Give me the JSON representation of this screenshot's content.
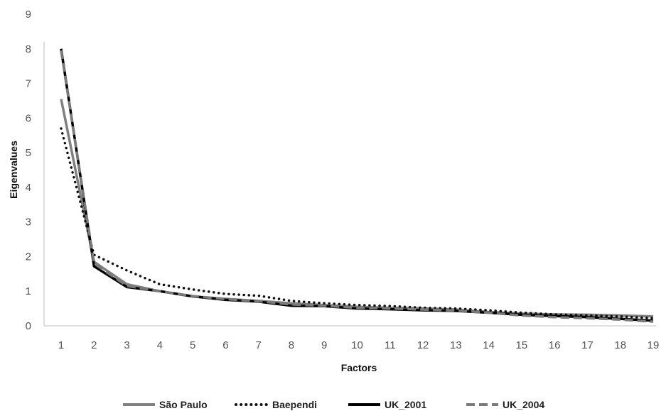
{
  "chart_data": {
    "type": "line",
    "title": "",
    "xlabel": "Factors",
    "ylabel": "Eigenvalues",
    "x": [
      1,
      2,
      3,
      4,
      5,
      6,
      7,
      8,
      9,
      10,
      11,
      12,
      13,
      14,
      15,
      16,
      17,
      18,
      19
    ],
    "ylim": [
      0,
      9
    ],
    "yticks": [
      0,
      1,
      2,
      3,
      4,
      5,
      6,
      7,
      8,
      9
    ],
    "grid": false,
    "legend_position": "bottom",
    "series": [
      {
        "name": "São Paulo",
        "color": "#808080",
        "style": "solid",
        "values": [
          6.55,
          1.85,
          1.2,
          1.0,
          0.85,
          0.78,
          0.72,
          0.65,
          0.6,
          0.55,
          0.52,
          0.5,
          0.47,
          0.4,
          0.35,
          0.33,
          0.32,
          0.3,
          0.27
        ]
      },
      {
        "name": "Baependi",
        "color": "#111111",
        "style": "dotted",
        "values": [
          5.7,
          2.05,
          1.6,
          1.2,
          1.05,
          0.92,
          0.87,
          0.72,
          0.65,
          0.6,
          0.57,
          0.52,
          0.5,
          0.45,
          0.38,
          0.33,
          0.3,
          0.27,
          0.22
        ]
      },
      {
        "name": "UK_2001",
        "color": "#000000",
        "style": "solid",
        "values": [
          8.0,
          1.72,
          1.12,
          1.0,
          0.85,
          0.75,
          0.7,
          0.58,
          0.57,
          0.5,
          0.48,
          0.45,
          0.43,
          0.38,
          0.32,
          0.28,
          0.25,
          0.2,
          0.15
        ]
      },
      {
        "name": "UK_2004",
        "color": "#7a7a7a",
        "style": "dashed",
        "values": [
          7.95,
          1.8,
          1.15,
          1.0,
          0.86,
          0.77,
          0.71,
          0.62,
          0.58,
          0.52,
          0.5,
          0.47,
          0.44,
          0.38,
          0.3,
          0.25,
          0.22,
          0.18,
          0.12
        ]
      }
    ]
  }
}
